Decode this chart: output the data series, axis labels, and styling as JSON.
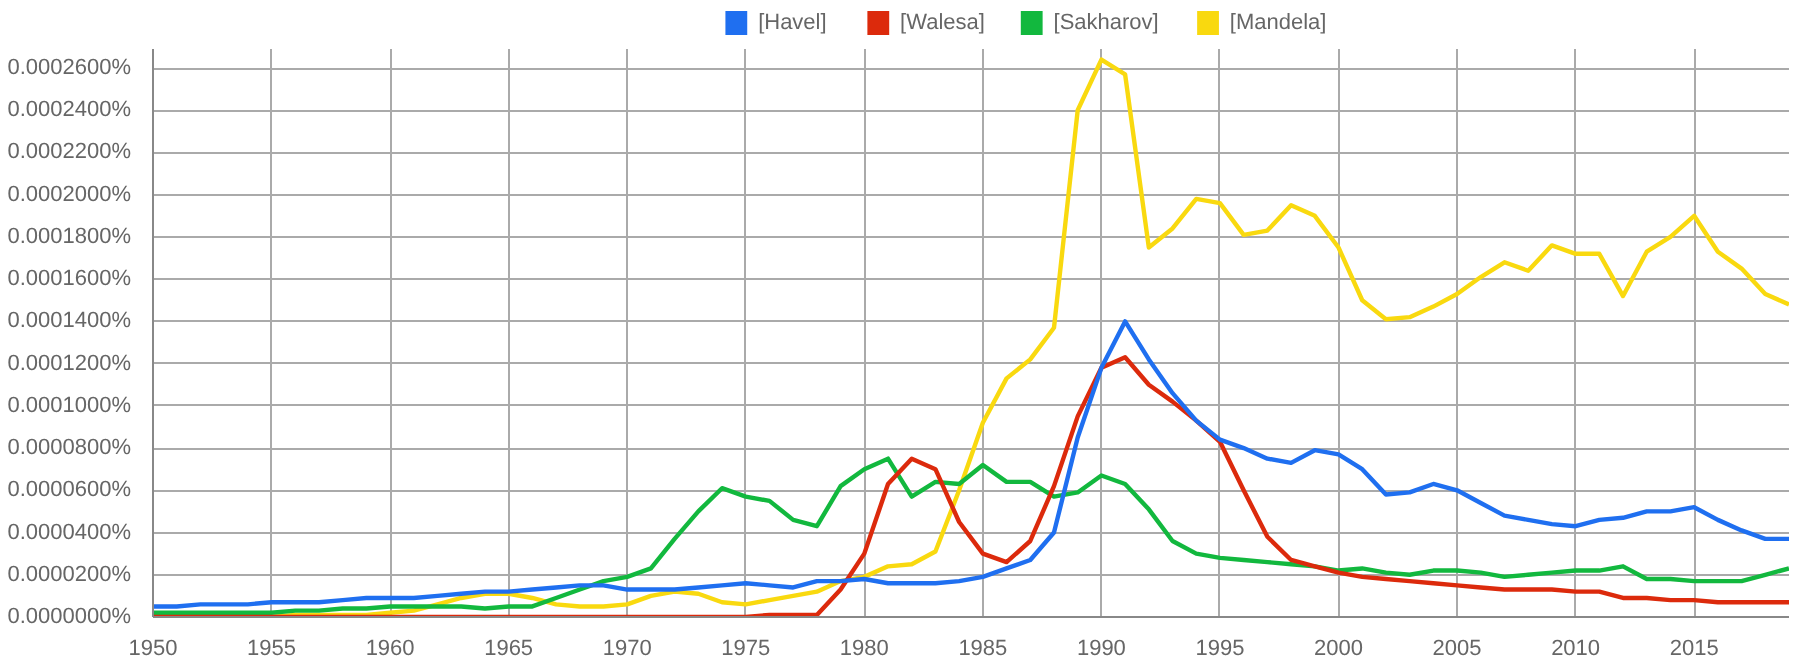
{
  "chart_data": {
    "type": "line",
    "x": [
      1950,
      1951,
      1952,
      1953,
      1954,
      1955,
      1956,
      1957,
      1958,
      1959,
      1960,
      1961,
      1962,
      1963,
      1964,
      1965,
      1966,
      1967,
      1968,
      1969,
      1970,
      1971,
      1972,
      1973,
      1974,
      1975,
      1976,
      1977,
      1978,
      1979,
      1980,
      1981,
      1982,
      1983,
      1984,
      1985,
      1986,
      1987,
      1988,
      1989,
      1990,
      1991,
      1992,
      1993,
      1994,
      1995,
      1996,
      1997,
      1998,
      1999,
      2000,
      2001,
      2002,
      2003,
      2004,
      2005,
      2006,
      2007,
      2008,
      2009,
      2010,
      2011,
      2012,
      2013,
      2014,
      2015,
      2016,
      2017,
      2018,
      2019
    ],
    "series": [
      {
        "name": "[Havel]",
        "color": "#1f6ff0",
        "values": [
          5e-06,
          5e-06,
          6e-06,
          6e-06,
          6e-06,
          7e-06,
          7e-06,
          7e-06,
          8e-06,
          9e-06,
          9e-06,
          9e-06,
          1e-05,
          1.1e-05,
          1.2e-05,
          1.2e-05,
          1.3e-05,
          1.4e-05,
          1.5e-05,
          1.5e-05,
          1.3e-05,
          1.3e-05,
          1.3e-05,
          1.4e-05,
          1.5e-05,
          1.6e-05,
          1.5e-05,
          1.4e-05,
          1.7e-05,
          1.7e-05,
          1.8e-05,
          1.6e-05,
          1.6e-05,
          1.6e-05,
          1.7e-05,
          1.9e-05,
          2.3e-05,
          2.7e-05,
          4e-05,
          8.5e-05,
          0.000118,
          0.00014,
          0.000122,
          0.000106,
          9.3e-05,
          8.4e-05,
          8e-05,
          7.5e-05,
          7.3e-05,
          7.9e-05,
          7.7e-05,
          7e-05,
          5.8e-05,
          5.9e-05,
          6.3e-05,
          6e-05,
          5.4e-05,
          4.8e-05,
          4.6e-05,
          4.4e-05,
          4.3e-05,
          4.6e-05,
          4.7e-05,
          5e-05,
          5e-05,
          5.2e-05,
          4.6e-05,
          4.1e-05,
          3.7e-05,
          3.7e-05
        ]
      },
      {
        "name": "[Walesa]",
        "color": "#dc2a0c",
        "values": [
          0,
          0,
          0,
          0,
          0,
          0,
          0,
          0,
          0,
          0,
          0,
          0,
          0,
          0,
          0,
          0,
          0,
          0,
          0,
          0,
          0,
          0,
          0,
          0,
          0,
          0,
          1e-06,
          1e-06,
          1e-06,
          1.3e-05,
          3e-05,
          6.3e-05,
          7.5e-05,
          7e-05,
          4.5e-05,
          3e-05,
          2.6e-05,
          3.6e-05,
          6.2e-05,
          9.5e-05,
          0.000118,
          0.000123,
          0.00011,
          0.000102,
          9.3e-05,
          8.3e-05,
          6e-05,
          3.8e-05,
          2.7e-05,
          2.4e-05,
          2.1e-05,
          1.9e-05,
          1.8e-05,
          1.7e-05,
          1.6e-05,
          1.5e-05,
          1.4e-05,
          1.3e-05,
          1.3e-05,
          1.3e-05,
          1.2e-05,
          1.2e-05,
          9e-06,
          9e-06,
          8e-06,
          8e-06,
          7e-06,
          7e-06,
          7e-06,
          7e-06
        ]
      },
      {
        "name": "[Sakharov]",
        "color": "#12b83e",
        "values": [
          2e-06,
          2e-06,
          2e-06,
          2e-06,
          2e-06,
          2e-06,
          3e-06,
          3e-06,
          4e-06,
          4e-06,
          5e-06,
          5e-06,
          5e-06,
          5e-06,
          4e-06,
          5e-06,
          5e-06,
          9e-06,
          1.3e-05,
          1.7e-05,
          1.9e-05,
          2.3e-05,
          3.7e-05,
          5e-05,
          6.1e-05,
          5.7e-05,
          5.5e-05,
          4.6e-05,
          4.3e-05,
          6.2e-05,
          7e-05,
          7.5e-05,
          5.7e-05,
          6.4e-05,
          6.3e-05,
          7.2e-05,
          6.4e-05,
          6.4e-05,
          5.7e-05,
          5.9e-05,
          6.7e-05,
          6.3e-05,
          5.1e-05,
          3.6e-05,
          3e-05,
          2.8e-05,
          2.7e-05,
          2.6e-05,
          2.5e-05,
          2.4e-05,
          2.2e-05,
          2.3e-05,
          2.1e-05,
          2e-05,
          2.2e-05,
          2.2e-05,
          2.1e-05,
          1.9e-05,
          2e-05,
          2.1e-05,
          2.2e-05,
          2.2e-05,
          2.4e-05,
          1.8e-05,
          1.8e-05,
          1.7e-05,
          1.7e-05,
          1.7e-05,
          2e-05,
          2.3e-05
        ]
      },
      {
        "name": "[Mandela]",
        "color": "#f9d90f",
        "values": [
          null,
          null,
          null,
          null,
          null,
          0,
          1e-06,
          1e-06,
          1e-06,
          1e-06,
          2e-06,
          3e-06,
          6e-06,
          9e-06,
          1.1e-05,
          1.1e-05,
          9e-06,
          6e-06,
          5e-06,
          5e-06,
          6e-06,
          1e-05,
          1.2e-05,
          1.1e-05,
          7e-06,
          6e-06,
          8e-06,
          1e-05,
          1.2e-05,
          1.7e-05,
          1.9e-05,
          2.4e-05,
          2.5e-05,
          3.1e-05,
          6e-05,
          9.2e-05,
          0.000113,
          0.000122,
          0.000137,
          0.00024,
          0.000264,
          0.000257,
          0.000175,
          0.000184,
          0.000198,
          0.000196,
          0.000181,
          0.000183,
          0.000195,
          0.00019,
          0.000175,
          0.00015,
          0.000141,
          0.000142,
          0.000147,
          0.000153,
          0.000161,
          0.000168,
          0.000164,
          0.000176,
          0.000172,
          0.000172,
          0.000152,
          0.000173,
          0.00018,
          0.00019,
          0.000173,
          0.000165,
          0.000153,
          0.000148
        ]
      }
    ],
    "xlim": [
      1950,
      2019
    ],
    "ylim": [
      0,
      0.000269
    ],
    "xticks": [
      1950,
      1955,
      1960,
      1965,
      1970,
      1975,
      1980,
      1985,
      1990,
      1995,
      2000,
      2005,
      2010,
      2015
    ],
    "yticks": [
      {
        "value": 0,
        "label": "0.0000000%"
      },
      {
        "value": 2e-05,
        "label": "0.0000200%"
      },
      {
        "value": 4e-05,
        "label": "0.0000400%"
      },
      {
        "value": 6e-05,
        "label": "0.0000600%"
      },
      {
        "value": 8e-05,
        "label": "0.0000800%"
      },
      {
        "value": 0.0001,
        "label": "0.0001000%"
      },
      {
        "value": 0.00012,
        "label": "0.0001200%"
      },
      {
        "value": 0.00014,
        "label": "0.0001400%"
      },
      {
        "value": 0.00016,
        "label": "0.0001600%"
      },
      {
        "value": 0.00018,
        "label": "0.0001800%"
      },
      {
        "value": 0.0002,
        "label": "0.0002000%"
      },
      {
        "value": 0.00022,
        "label": "0.0002200%"
      },
      {
        "value": 0.00024,
        "label": "0.0002400%"
      },
      {
        "value": 0.00026,
        "label": "0.0002600%"
      }
    ],
    "grid": true,
    "legend": "top",
    "marker": "none",
    "line_style": "solid"
  }
}
